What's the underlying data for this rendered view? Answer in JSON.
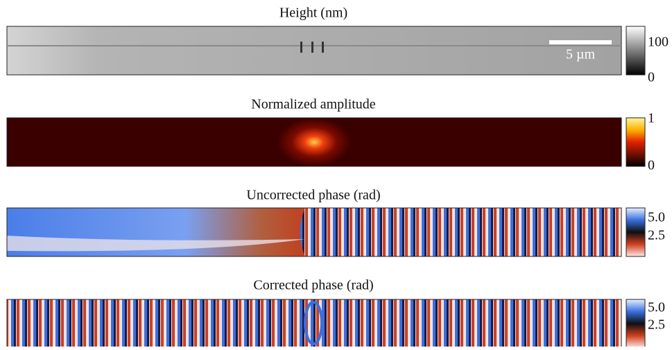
{
  "panels": [
    {
      "title": "Height (nm)",
      "colorbar_ticks": [
        "100",
        "0"
      ]
    },
    {
      "title": "Normalized amplitude",
      "colorbar_ticks": [
        "1",
        "0"
      ]
    },
    {
      "title": "Uncorrected phase (rad)",
      "colorbar_ticks": [
        "5.0",
        "2.5"
      ]
    },
    {
      "title": "Corrected phase (rad)",
      "colorbar_ticks": [
        "5.0",
        "2.5"
      ]
    }
  ],
  "scale_bar": {
    "label": "5 µm"
  }
}
